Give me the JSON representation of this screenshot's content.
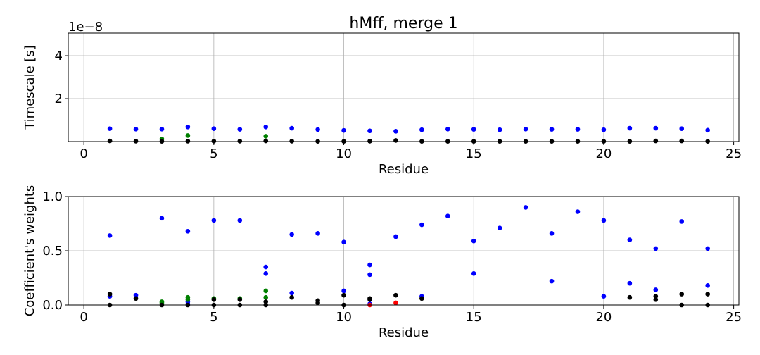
{
  "chart_data": [
    {
      "type": "scatter",
      "title": "hMff, merge 1",
      "xlabel": "Residue",
      "ylabel": "Timescale [s]",
      "y_offset_label": "1e−8",
      "xlim": [
        -0.6,
        25.2
      ],
      "ylim": [
        0,
        5.05
      ],
      "y_units_scale": "1e-8",
      "xticks": [
        0,
        5,
        10,
        15,
        20,
        25
      ],
      "yticks": [
        2,
        4
      ],
      "grid": true,
      "series": [
        {
          "color": "#0000ff",
          "x": [
            1,
            2,
            3,
            4,
            5,
            6,
            7,
            8,
            9,
            10,
            11,
            12,
            13,
            14,
            15,
            16,
            17,
            18,
            19,
            20,
            21,
            22,
            23,
            24
          ],
          "y": [
            0.6,
            0.58,
            0.58,
            0.68,
            0.6,
            0.57,
            0.68,
            0.62,
            0.56,
            0.52,
            0.5,
            0.48,
            0.55,
            0.58,
            0.57,
            0.55,
            0.58,
            0.57,
            0.57,
            0.55,
            0.62,
            0.62,
            0.6,
            0.53
          ]
        },
        {
          "color": "#008000",
          "x": [
            3,
            4,
            7
          ],
          "y": [
            0.12,
            0.28,
            0.25
          ]
        },
        {
          "color": "#000000",
          "x": [
            1,
            2,
            3,
            4,
            5,
            6,
            7,
            8,
            9,
            10,
            11,
            12,
            13,
            14,
            15,
            16,
            17,
            18,
            19,
            20,
            21,
            22,
            23,
            24
          ],
          "y": [
            0.03,
            0.02,
            0.01,
            0.02,
            0.02,
            0.02,
            0.03,
            0.02,
            0.01,
            0.01,
            0.02,
            0.05,
            0.01,
            0.01,
            0.01,
            0.01,
            0.01,
            0.01,
            0.01,
            0.01,
            0.01,
            0.03,
            0.03,
            0.01
          ]
        }
      ]
    },
    {
      "type": "scatter",
      "title": "",
      "xlabel": "Residue",
      "ylabel": "Coefficient's weights",
      "xlim": [
        -0.6,
        25.2
      ],
      "ylim": [
        0,
        1.0
      ],
      "xticks": [
        0,
        5,
        10,
        15,
        20,
        25
      ],
      "yticks": [
        0.0,
        0.5,
        1.0
      ],
      "grid": true,
      "series": [
        {
          "color": "#0000ff",
          "x": [
            1,
            1,
            2,
            3,
            4,
            4,
            4,
            5,
            6,
            7,
            7,
            8,
            8,
            9,
            10,
            10,
            11,
            11,
            11,
            12,
            13,
            13,
            14,
            15,
            15,
            16,
            17,
            18,
            18,
            19,
            20,
            20,
            21,
            21,
            22,
            22,
            23,
            24,
            24
          ],
          "y": [
            0.64,
            0.08,
            0.09,
            0.8,
            0.68,
            0.03,
            0.01,
            0.78,
            0.78,
            0.35,
            0.29,
            0.65,
            0.11,
            0.66,
            0.58,
            0.13,
            0.37,
            0.28,
            0.01,
            0.63,
            0.74,
            0.08,
            0.82,
            0.59,
            0.29,
            0.71,
            0.9,
            0.66,
            0.22,
            0.86,
            0.78,
            0.08,
            0.6,
            0.2,
            0.52,
            0.14,
            0.77,
            0.52,
            0.18
          ]
        },
        {
          "color": "#008000",
          "x": [
            3,
            3,
            4,
            4,
            5,
            6,
            7,
            7
          ],
          "y": [
            0.03,
            0.02,
            0.07,
            0.05,
            0.06,
            0.06,
            0.13,
            0.07
          ]
        },
        {
          "color": "#000000",
          "x": [
            1,
            1,
            2,
            3,
            4,
            5,
            5,
            6,
            6,
            7,
            7,
            8,
            9,
            9,
            10,
            10,
            11,
            11,
            12,
            13,
            21,
            22,
            22,
            23,
            23,
            24,
            24
          ],
          "y": [
            0.1,
            0.0,
            0.06,
            0.0,
            0.0,
            0.05,
            0.0,
            0.05,
            0.0,
            0.03,
            0.0,
            0.07,
            0.04,
            0.02,
            0.09,
            0.0,
            0.06,
            0.05,
            0.09,
            0.06,
            0.07,
            0.08,
            0.05,
            0.1,
            0.0,
            0.1,
            0.0
          ]
        },
        {
          "color": "#ff0000",
          "x": [
            11,
            12
          ],
          "y": [
            0.0,
            0.02
          ]
        }
      ]
    }
  ]
}
